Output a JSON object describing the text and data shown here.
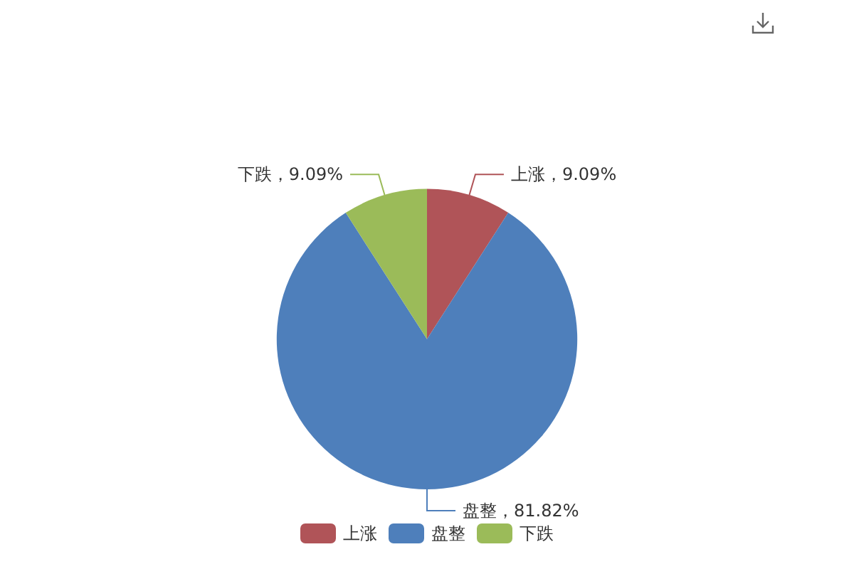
{
  "chart_data": {
    "type": "pie",
    "categories": [
      "上涨",
      "盘整",
      "下跌"
    ],
    "values": [
      9.09,
      81.82,
      9.09
    ],
    "colors": [
      "#b05458",
      "#4e7fbb",
      "#9bbb59"
    ],
    "value_labels": [
      "上涨，9.09%",
      "盘整，81.82%",
      "下跌，9.09%"
    ],
    "legend": "bottom"
  }
}
